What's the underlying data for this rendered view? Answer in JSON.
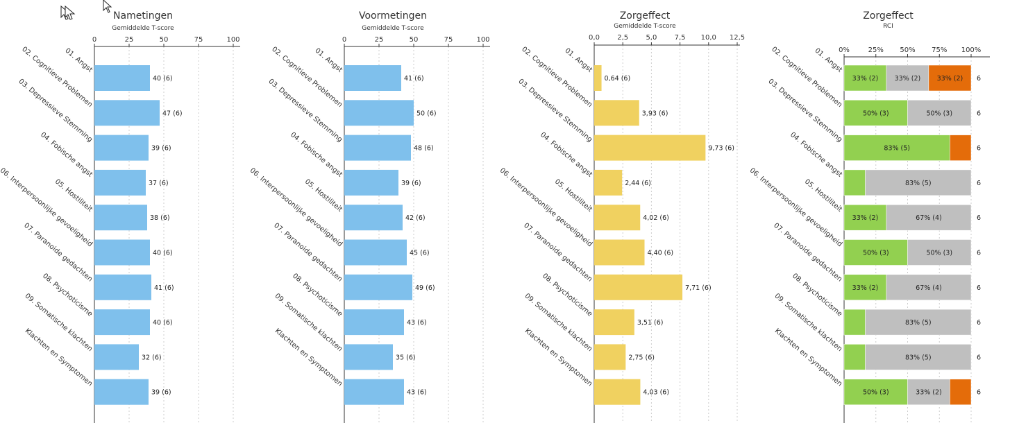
{
  "categories": [
    "01. Angst",
    "02. Cognitieve Problemen",
    "03. Depressieve Stemming",
    "04. Fobische angst",
    "05. Hostiliteit",
    "06. Interpersoonlijke gevoeligheid",
    "07. Paranoide gedachten",
    "08. Psychoticisme",
    "09. Somatische klachten",
    "Klachten en Symptomen"
  ],
  "colors": {
    "blue": "#7fc0ec",
    "yellow": "#f0d160",
    "green": "#92d050",
    "gray": "#bfbfbf",
    "orange": "#e46c0a",
    "grid": "#cccccc",
    "axis": "#333333",
    "text": "#333333"
  },
  "chart_data": [
    {
      "type": "bar",
      "orientation": "horizontal",
      "title": "Nametingen",
      "subtitle": "Gemiddelde T-score",
      "xlim": [
        0,
        100
      ],
      "ticks": [
        0,
        25,
        50,
        75,
        100
      ],
      "tick_labels": [
        "0",
        "25",
        "50",
        "75",
        "100"
      ],
      "values": [
        40,
        47,
        39,
        37,
        38,
        40,
        41,
        40,
        32,
        39
      ],
      "labels": [
        "40 (6)",
        "47 (6)",
        "39 (6)",
        "37 (6)",
        "38 (6)",
        "40 (6)",
        "41 (6)",
        "40 (6)",
        "32 (6)",
        "39 (6)"
      ],
      "color": "#7fc0ec",
      "grid": true
    },
    {
      "type": "bar",
      "orientation": "horizontal",
      "title": "Voormetingen",
      "subtitle": "Gemiddelde T-score",
      "xlim": [
        0,
        100
      ],
      "ticks": [
        0,
        25,
        50,
        75,
        100
      ],
      "tick_labels": [
        "0",
        "25",
        "50",
        "75",
        "100"
      ],
      "values": [
        41,
        50,
        48,
        39,
        42,
        45,
        49,
        43,
        35,
        43
      ],
      "labels": [
        "41 (6)",
        "50 (6)",
        "48 (6)",
        "39 (6)",
        "42 (6)",
        "45 (6)",
        "49 (6)",
        "43 (6)",
        "35 (6)",
        "43 (6)"
      ],
      "color": "#7fc0ec",
      "grid": true
    },
    {
      "type": "bar",
      "orientation": "horizontal",
      "title": "Zorgeffect",
      "subtitle": "Gemiddelde T-score",
      "xlim": [
        0,
        12.5
      ],
      "ticks": [
        0,
        2.5,
        5,
        7.5,
        10,
        12.5
      ],
      "tick_labels": [
        "0,0",
        "2,5",
        "5,0",
        "7,5",
        "10,0",
        "12,5"
      ],
      "values": [
        0.64,
        3.93,
        9.73,
        2.44,
        4.02,
        4.4,
        7.71,
        3.51,
        2.75,
        4.03
      ],
      "labels": [
        "0,64 (6)",
        "3,93 (6)",
        "9,73 (6)",
        "2,44 (6)",
        "4,02 (6)",
        "4,40 (6)",
        "7,71 (6)",
        "3,51 (6)",
        "2,75 (6)",
        "4,03 (6)"
      ],
      "color": "#f0d160",
      "grid": true
    },
    {
      "type": "bar",
      "orientation": "horizontal",
      "stacked": "percent",
      "title": "Zorgeffect",
      "subtitle": "RCI",
      "xlim": [
        0,
        100
      ],
      "ticks": [
        0,
        25,
        50,
        75,
        100
      ],
      "tick_labels": [
        "0%",
        "25%",
        "50%",
        "75%",
        "100%"
      ],
      "totals": [
        "6",
        "6",
        "6",
        "6",
        "6",
        "6",
        "6",
        "6",
        "6",
        "6"
      ],
      "segments": [
        [
          {
            "pct": 33.3,
            "label": "33% (2)",
            "color": "#92d050"
          },
          {
            "pct": 33.3,
            "label": "33% (2)",
            "color": "#bfbfbf"
          },
          {
            "pct": 33.4,
            "label": "33% (2)",
            "color": "#e46c0a"
          }
        ],
        [
          {
            "pct": 50,
            "label": "50% (3)",
            "color": "#92d050"
          },
          {
            "pct": 50,
            "label": "50% (3)",
            "color": "#bfbfbf"
          }
        ],
        [
          {
            "pct": 83.3,
            "label": "83% (5)",
            "color": "#92d050"
          },
          {
            "pct": 16.7,
            "label": "",
            "color": "#e46c0a"
          }
        ],
        [
          {
            "pct": 16.7,
            "label": "",
            "color": "#92d050"
          },
          {
            "pct": 83.3,
            "label": "83% (5)",
            "color": "#bfbfbf"
          }
        ],
        [
          {
            "pct": 33.3,
            "label": "33% (2)",
            "color": "#92d050"
          },
          {
            "pct": 66.7,
            "label": "67% (4)",
            "color": "#bfbfbf"
          }
        ],
        [
          {
            "pct": 50,
            "label": "50% (3)",
            "color": "#92d050"
          },
          {
            "pct": 50,
            "label": "50% (3)",
            "color": "#bfbfbf"
          }
        ],
        [
          {
            "pct": 33.3,
            "label": "33% (2)",
            "color": "#92d050"
          },
          {
            "pct": 66.7,
            "label": "67% (4)",
            "color": "#bfbfbf"
          }
        ],
        [
          {
            "pct": 16.7,
            "label": "",
            "color": "#92d050"
          },
          {
            "pct": 83.3,
            "label": "83% (5)",
            "color": "#bfbfbf"
          }
        ],
        [
          {
            "pct": 16.7,
            "label": "",
            "color": "#92d050"
          },
          {
            "pct": 83.3,
            "label": "83% (5)",
            "color": "#bfbfbf"
          }
        ],
        [
          {
            "pct": 50,
            "label": "50% (3)",
            "color": "#92d050"
          },
          {
            "pct": 33.3,
            "label": "33% (2)",
            "color": "#bfbfbf"
          },
          {
            "pct": 16.7,
            "label": "",
            "color": "#e46c0a"
          }
        ]
      ],
      "grid": true
    }
  ]
}
